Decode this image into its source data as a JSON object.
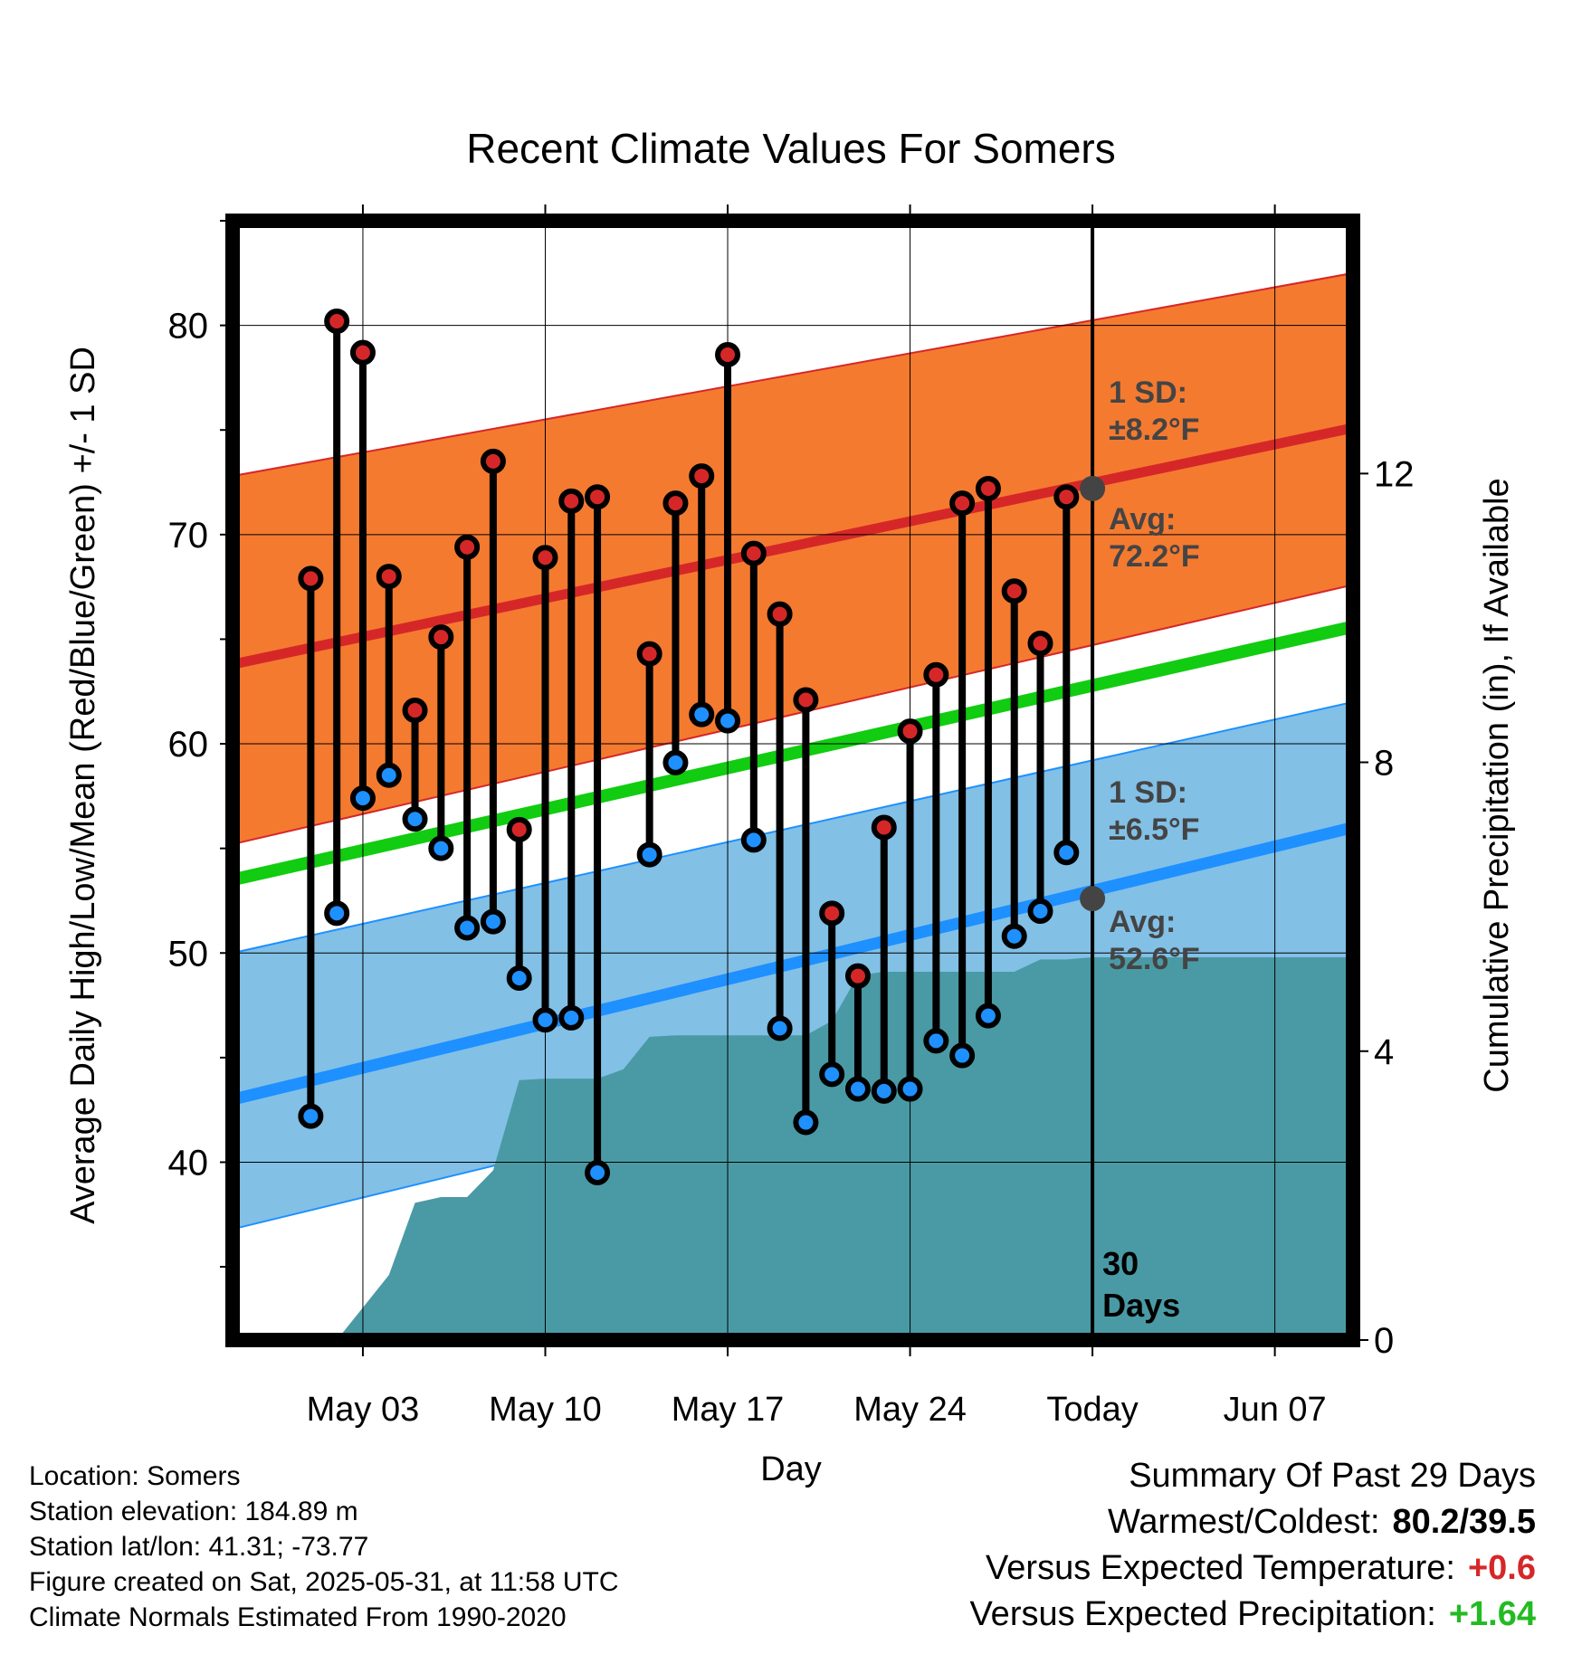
{
  "chart_data": {
    "type": "line",
    "title": "Recent Climate Values For Somers",
    "xlabel": "Day",
    "ylabel_left": "Average Daily High/Low/Mean (Red/Blue/Green) +/- 1 SD",
    "ylabel_right": "Cumulative Precipitation (in), If Available",
    "ylim": [
      31.5,
      85
    ],
    "ylim_right": [
      0,
      15.5
    ],
    "xlim": [
      "2025-04-28",
      "2025-06-10"
    ],
    "yticks": [
      40,
      50,
      60,
      70,
      80
    ],
    "yticks_right": [
      0,
      4,
      8,
      12
    ],
    "xticks": [
      {
        "date": "2025-05-03",
        "label": "May 03"
      },
      {
        "date": "2025-05-10",
        "label": "May 10"
      },
      {
        "date": "2025-05-17",
        "label": "May 17"
      },
      {
        "date": "2025-05-24",
        "label": "May 24"
      },
      {
        "date": "2025-05-31",
        "label": "Today"
      },
      {
        "date": "2025-06-07",
        "label": "Jun 07"
      }
    ],
    "grid": true,
    "today": "2025-05-31",
    "today_label": [
      "30",
      "Days"
    ],
    "normals": {
      "dates": [
        "2025-04-28",
        "2025-06-10"
      ],
      "avg_high": [
        63.8,
        75.1
      ],
      "high_upper": [
        72.8,
        82.5
      ],
      "high_lower": [
        55.2,
        67.6
      ],
      "avg_low": [
        43.0,
        56.0
      ],
      "low_upper": [
        50.0,
        62.0
      ],
      "low_lower": [
        36.8,
        49.8
      ],
      "avg_mean": [
        53.5,
        65.6
      ]
    },
    "annotations": {
      "high_sd": [
        "1 SD:",
        "±8.2°F"
      ],
      "high_avg": [
        "Avg:",
        "72.2°F"
      ],
      "low_sd": [
        "1 SD:",
        "±6.5°F"
      ],
      "low_avg": [
        "Avg:",
        "52.6°F"
      ],
      "today_high_avg": 72.2,
      "today_low_avg": 52.6
    },
    "series": [
      {
        "name": "High",
        "color": "#d62728",
        "x": [
          "2025-05-01",
          "2025-05-02",
          "2025-05-03",
          "2025-05-04",
          "2025-05-05",
          "2025-05-06",
          "2025-05-07",
          "2025-05-08",
          "2025-05-09",
          "2025-05-10",
          "2025-05-11",
          "2025-05-12",
          "2025-05-14",
          "2025-05-15",
          "2025-05-16",
          "2025-05-17",
          "2025-05-18",
          "2025-05-19",
          "2025-05-20",
          "2025-05-21",
          "2025-05-22",
          "2025-05-23",
          "2025-05-24",
          "2025-05-25",
          "2025-05-26",
          "2025-05-27",
          "2025-05-28",
          "2025-05-29",
          "2025-05-30"
        ],
        "values": [
          67.9,
          80.2,
          78.7,
          68.0,
          61.6,
          65.1,
          69.4,
          73.5,
          55.9,
          68.9,
          71.6,
          71.8,
          64.3,
          71.5,
          72.8,
          78.6,
          69.1,
          66.2,
          62.1,
          51.9,
          48.9,
          56.0,
          60.6,
          63.3,
          71.5,
          72.2,
          67.3,
          64.8,
          71.8
        ]
      },
      {
        "name": "Low",
        "color": "#1e90ff",
        "x": [
          "2025-05-01",
          "2025-05-02",
          "2025-05-03",
          "2025-05-04",
          "2025-05-05",
          "2025-05-06",
          "2025-05-07",
          "2025-05-08",
          "2025-05-09",
          "2025-05-10",
          "2025-05-11",
          "2025-05-12",
          "2025-05-14",
          "2025-05-15",
          "2025-05-16",
          "2025-05-17",
          "2025-05-18",
          "2025-05-19",
          "2025-05-20",
          "2025-05-21",
          "2025-05-22",
          "2025-05-23",
          "2025-05-24",
          "2025-05-25",
          "2025-05-26",
          "2025-05-27",
          "2025-05-28",
          "2025-05-29",
          "2025-05-30"
        ],
        "values": [
          42.2,
          51.9,
          57.4,
          58.5,
          56.4,
          55.0,
          51.2,
          51.5,
          48.8,
          46.8,
          46.9,
          39.5,
          54.7,
          59.1,
          61.4,
          61.1,
          55.4,
          46.4,
          41.9,
          44.2,
          43.5,
          43.4,
          43.5,
          45.8,
          45.1,
          47.0,
          50.8,
          52.0,
          54.8
        ]
      },
      {
        "name": "Cumulative Precipitation",
        "color": "#4a9aa5",
        "x": [
          "2025-05-01",
          "2025-05-02",
          "2025-05-03",
          "2025-05-04",
          "2025-05-05",
          "2025-05-06",
          "2025-05-07",
          "2025-05-08",
          "2025-05-09",
          "2025-05-10",
          "2025-05-11",
          "2025-05-12",
          "2025-05-13",
          "2025-05-14",
          "2025-05-15",
          "2025-05-16",
          "2025-05-17",
          "2025-05-18",
          "2025-05-19",
          "2025-05-20",
          "2025-05-21",
          "2025-05-22",
          "2025-05-23",
          "2025-05-24",
          "2025-05-25",
          "2025-05-26",
          "2025-05-27",
          "2025-05-28",
          "2025-05-29",
          "2025-05-30",
          "2025-05-31",
          "2025-06-10"
        ],
        "values": [
          0.0,
          0.0,
          0.45,
          0.9,
          1.9,
          1.98,
          1.98,
          2.35,
          3.6,
          3.62,
          3.62,
          3.62,
          3.75,
          4.2,
          4.22,
          4.22,
          4.22,
          4.22,
          4.22,
          4.22,
          4.42,
          5.05,
          5.1,
          5.1,
          5.1,
          5.1,
          5.1,
          5.1,
          5.27,
          5.27,
          5.3,
          5.3
        ]
      }
    ]
  },
  "footer": {
    "location": "Location: Somers",
    "elevation": "Station elevation: 184.89 m",
    "latlon": "Station lat/lon: 41.31; -73.77",
    "created": "Figure created on Sat, 2025-05-31, at 11:58 UTC",
    "normals": "Climate Normals Estimated From 1990-2020"
  },
  "summary": {
    "title": "Summary Of Past 29 Days",
    "warmest_coldest_label": "Warmest/Coldest:",
    "warmest_coldest_value": "80.2/39.5",
    "temp_label": "Versus Expected Temperature:",
    "temp_value": "+0.6",
    "temp_color": "#d62728",
    "precip_label": "Versus Expected Precipitation:",
    "precip_value": "+1.64",
    "precip_color": "#22bb22"
  },
  "colors": {
    "high_band": "#f47a30",
    "high_avg_line": "#d62728",
    "low_band": "#82c0e6",
    "low_avg_line": "#1e90ff",
    "mean_line": "#11cc11",
    "precip_fill": "#4a9aa5",
    "today_marker": "#444444"
  }
}
